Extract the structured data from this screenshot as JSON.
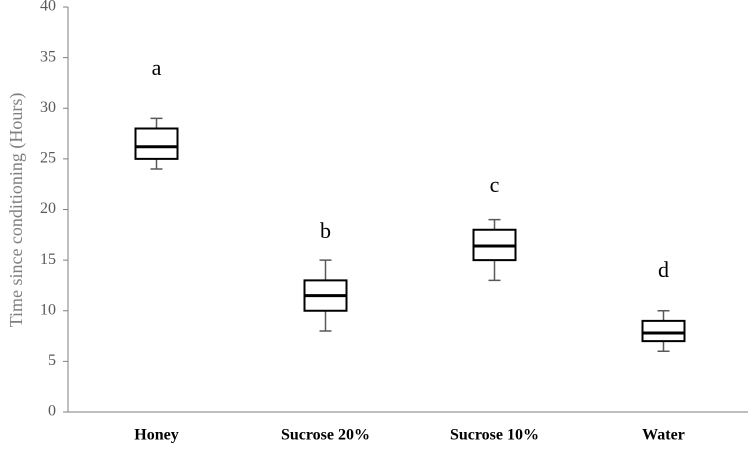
{
  "chart_data": {
    "type": "box",
    "y_label": "Time since conditioning (Hours)",
    "categories": [
      "Honey",
      "Sucrose 20%",
      "Sucrose 10%",
      "Water"
    ],
    "boxes": [
      {
        "min": 24,
        "q1": 25,
        "median": 26.2,
        "q3": 28,
        "max": 29
      },
      {
        "min": 8,
        "q1": 10,
        "median": 11.5,
        "q3": 13,
        "max": 15
      },
      {
        "min": 13,
        "q1": 15,
        "median": 16.4,
        "q3": 18,
        "max": 19
      },
      {
        "min": 6,
        "q1": 7,
        "median": 7.8,
        "q3": 9,
        "max": 10
      }
    ],
    "annotations": [
      "a",
      "b",
      "c",
      "d"
    ],
    "color": "#000000",
    "ylim": [
      0,
      40
    ],
    "yticks": [
      0,
      5,
      10,
      15,
      20,
      25,
      30,
      35,
      40
    ],
    "grid": false
  }
}
